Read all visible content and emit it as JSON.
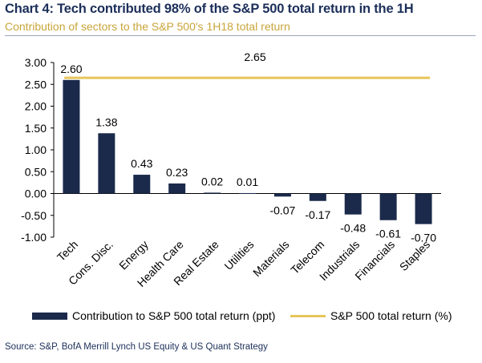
{
  "header": {
    "title": "Chart 4: Tech contributed 98% of the S&P 500 total return in the 1H",
    "subtitle": "Contribution of sectors to the S&P 500's 1H18 total return"
  },
  "chart_data": {
    "type": "bar",
    "categories": [
      "Tech",
      "Cons. Disc.",
      "Energy",
      "Health Care",
      "Real Estate",
      "Utilities",
      "Materials",
      "Telecom",
      "Industrials",
      "Financials",
      "Staples"
    ],
    "series": [
      {
        "name": "Contribution to S&P 500 total return (ppt)",
        "type": "bar",
        "values": [
          2.6,
          1.38,
          0.43,
          0.23,
          0.02,
          0.01,
          -0.07,
          -0.17,
          -0.48,
          -0.61,
          -0.7
        ],
        "labels": [
          "2.60",
          "1.38",
          "0.43",
          "0.23",
          "0.02",
          "0.01",
          "-0.07",
          "-0.17",
          "-0.48",
          "-0.61",
          "-0.70"
        ],
        "color": "#1b2a4b"
      },
      {
        "name": "S&P 500 total return (%)",
        "type": "line",
        "value": 2.65,
        "label": "2.65",
        "color": "#e6c55a"
      }
    ],
    "ylim": [
      -1.0,
      3.0
    ],
    "yticks": [
      "3.00",
      "2.50",
      "2.00",
      "1.50",
      "1.00",
      "0.50",
      "0.00",
      "-0.50",
      "-1.00"
    ],
    "ytick_values": [
      3.0,
      2.5,
      2.0,
      1.5,
      1.0,
      0.5,
      0.0,
      -0.5,
      -1.0
    ],
    "grid": false,
    "legend_position": "bottom"
  },
  "footer": {
    "source": "Source: S&P, BofA Merrill Lynch US Equity & US Quant Strategy"
  }
}
